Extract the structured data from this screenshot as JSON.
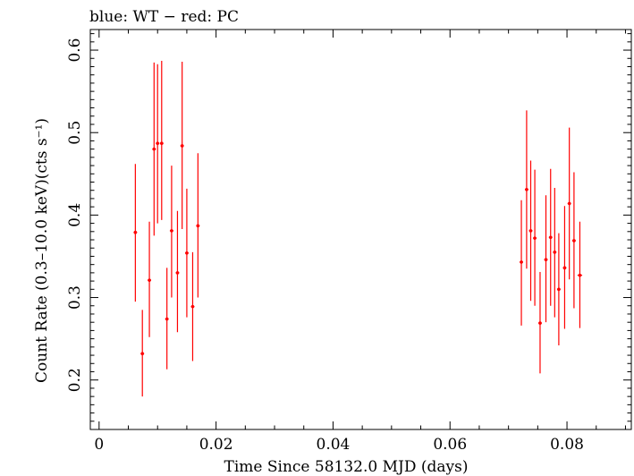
{
  "chart_data": {
    "type": "scatter",
    "title": "blue: WT − red: PC",
    "xlabel": "Time Since 58132.0 MJD (days)",
    "ylabel": "Count Rate (0.3–10.0 keV)(cts s⁻¹)",
    "xlim": [
      -0.0015,
      0.091
    ],
    "ylim": [
      0.14,
      0.625
    ],
    "xticks": [
      0,
      0.02,
      0.04,
      0.06,
      0.08
    ],
    "xtick_labels": [
      "0",
      "0.02",
      "0.04",
      "0.06",
      "0.08"
    ],
    "yticks": [
      0.2,
      0.3,
      0.4,
      0.5,
      0.6
    ],
    "ytick_labels": [
      "0.2",
      "0.3",
      "0.4",
      "0.5",
      "0.6"
    ],
    "grid": false,
    "series": [
      {
        "name": "PC",
        "color": "#ff0000",
        "points": [
          {
            "x": 0.0062,
            "y": 0.379,
            "lo": 0.295,
            "hi": 0.462,
            "xerr": 0.0003
          },
          {
            "x": 0.0074,
            "y": 0.232,
            "lo": 0.18,
            "hi": 0.285,
            "xerr": 0.0003
          },
          {
            "x": 0.0086,
            "y": 0.321,
            "lo": 0.252,
            "hi": 0.392,
            "xerr": 0.0003
          },
          {
            "x": 0.0094,
            "y": 0.48,
            "lo": 0.375,
            "hi": 0.585,
            "xerr": 0.0003
          },
          {
            "x": 0.01,
            "y": 0.487,
            "lo": 0.39,
            "hi": 0.583,
            "xerr": 0.0003
          },
          {
            "x": 0.0107,
            "y": 0.487,
            "lo": 0.394,
            "hi": 0.587,
            "xerr": 0.0003
          },
          {
            "x": 0.0116,
            "y": 0.274,
            "lo": 0.213,
            "hi": 0.336,
            "xerr": 0.0003
          },
          {
            "x": 0.0124,
            "y": 0.381,
            "lo": 0.3,
            "hi": 0.46,
            "xerr": 0.0003
          },
          {
            "x": 0.0134,
            "y": 0.33,
            "lo": 0.258,
            "hi": 0.405,
            "xerr": 0.0003
          },
          {
            "x": 0.0142,
            "y": 0.484,
            "lo": 0.383,
            "hi": 0.586,
            "xerr": 0.0003
          },
          {
            "x": 0.015,
            "y": 0.354,
            "lo": 0.276,
            "hi": 0.432,
            "xerr": 0.0003
          },
          {
            "x": 0.016,
            "y": 0.289,
            "lo": 0.223,
            "hi": 0.355,
            "xerr": 0.0003
          },
          {
            "x": 0.0169,
            "y": 0.387,
            "lo": 0.3,
            "hi": 0.475,
            "xerr": 0.0003
          },
          {
            "x": 0.0722,
            "y": 0.343,
            "lo": 0.266,
            "hi": 0.418,
            "xerr": 0.0003
          },
          {
            "x": 0.0731,
            "y": 0.431,
            "lo": 0.335,
            "hi": 0.527,
            "xerr": 0.0003
          },
          {
            "x": 0.0738,
            "y": 0.381,
            "lo": 0.296,
            "hi": 0.466,
            "xerr": 0.0003
          },
          {
            "x": 0.0745,
            "y": 0.372,
            "lo": 0.29,
            "hi": 0.455,
            "xerr": 0.0003
          },
          {
            "x": 0.0754,
            "y": 0.269,
            "lo": 0.208,
            "hi": 0.331,
            "xerr": 0.0003
          },
          {
            "x": 0.0764,
            "y": 0.346,
            "lo": 0.27,
            "hi": 0.424,
            "xerr": 0.0003
          },
          {
            "x": 0.0772,
            "y": 0.373,
            "lo": 0.29,
            "hi": 0.456,
            "xerr": 0.0003
          },
          {
            "x": 0.0779,
            "y": 0.355,
            "lo": 0.276,
            "hi": 0.433,
            "xerr": 0.0003
          },
          {
            "x": 0.0786,
            "y": 0.31,
            "lo": 0.242,
            "hi": 0.378,
            "xerr": 0.0003
          },
          {
            "x": 0.0796,
            "y": 0.336,
            "lo": 0.262,
            "hi": 0.411,
            "xerr": 0.0003
          },
          {
            "x": 0.0804,
            "y": 0.414,
            "lo": 0.322,
            "hi": 0.506,
            "xerr": 0.0003
          },
          {
            "x": 0.0812,
            "y": 0.369,
            "lo": 0.287,
            "hi": 0.452,
            "xerr": 0.0003
          },
          {
            "x": 0.0822,
            "y": 0.327,
            "lo": 0.263,
            "hi": 0.392,
            "xerr": 0.0004
          }
        ]
      }
    ]
  }
}
